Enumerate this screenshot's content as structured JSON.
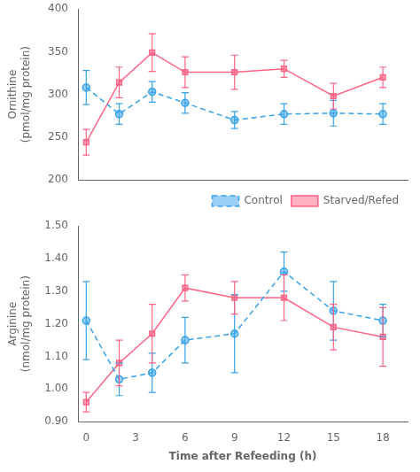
{
  "chart_data": [
    {
      "type": "line",
      "x": [
        0,
        2,
        4,
        6,
        9,
        12,
        15,
        18
      ],
      "series": [
        {
          "name": "Control",
          "values": [
            308,
            277,
            303,
            290,
            270,
            277,
            278,
            277
          ],
          "errors": [
            20,
            12,
            12,
            12,
            10,
            12,
            15,
            12
          ],
          "marker": "circle",
          "line_style": "dashed"
        },
        {
          "name": "Starved/Refed",
          "values": [
            244,
            314,
            349,
            326,
            326,
            330,
            298,
            320
          ],
          "errors": [
            15,
            18,
            22,
            18,
            20,
            10,
            15,
            12
          ],
          "marker": "square",
          "line_style": "solid"
        }
      ],
      "ylabel": "Ornithine\n(pmol/mg protein)",
      "xlim": [
        -0.5,
        19.5
      ],
      "xticks": [
        0,
        3,
        6,
        9,
        12,
        15,
        18
      ],
      "ylim": [
        200,
        400
      ],
      "yticks": [
        200,
        250,
        300,
        350,
        400
      ],
      "grid": false,
      "legend": "lower right",
      "tick_labels": "y"
    },
    {
      "type": "line",
      "x": [
        0,
        2,
        4,
        6,
        9,
        12,
        15,
        18
      ],
      "series": [
        {
          "name": "Control",
          "values": [
            1.21,
            1.03,
            1.05,
            1.15,
            1.17,
            1.36,
            1.24,
            1.21
          ],
          "errors": [
            0.12,
            0.05,
            0.06,
            0.07,
            0.12,
            0.06,
            0.09,
            0.05
          ],
          "marker": "circle",
          "line_style": "dashed"
        },
        {
          "name": "Starved/Refed",
          "values": [
            0.96,
            1.08,
            1.17,
            1.31,
            1.28,
            1.28,
            1.19,
            1.16
          ],
          "errors": [
            0.03,
            0.07,
            0.09,
            0.04,
            0.05,
            0.07,
            0.07,
            0.09
          ],
          "marker": "square",
          "line_style": "solid"
        }
      ],
      "xlabel": "Time after Refeeding (h)",
      "ylabel": "Arginine\n(nmol/mg protein)",
      "xlim": [
        -0.5,
        19.5
      ],
      "xticks": [
        0,
        3,
        6,
        9,
        12,
        15,
        18
      ],
      "ylim": [
        0.9,
        1.5
      ],
      "yticks": [
        {
          "value": 0.9,
          "label": "0.90"
        },
        {
          "value": 1.0,
          "label": "1.00"
        },
        {
          "value": 1.1,
          "label": "1.10"
        },
        {
          "value": 1.2,
          "label": "1.20"
        },
        {
          "value": 1.3,
          "label": "1.30"
        },
        {
          "value": 1.4,
          "label": "1.40"
        },
        {
          "value": 1.5,
          "label": "1.50"
        }
      ],
      "grid": false
    }
  ]
}
